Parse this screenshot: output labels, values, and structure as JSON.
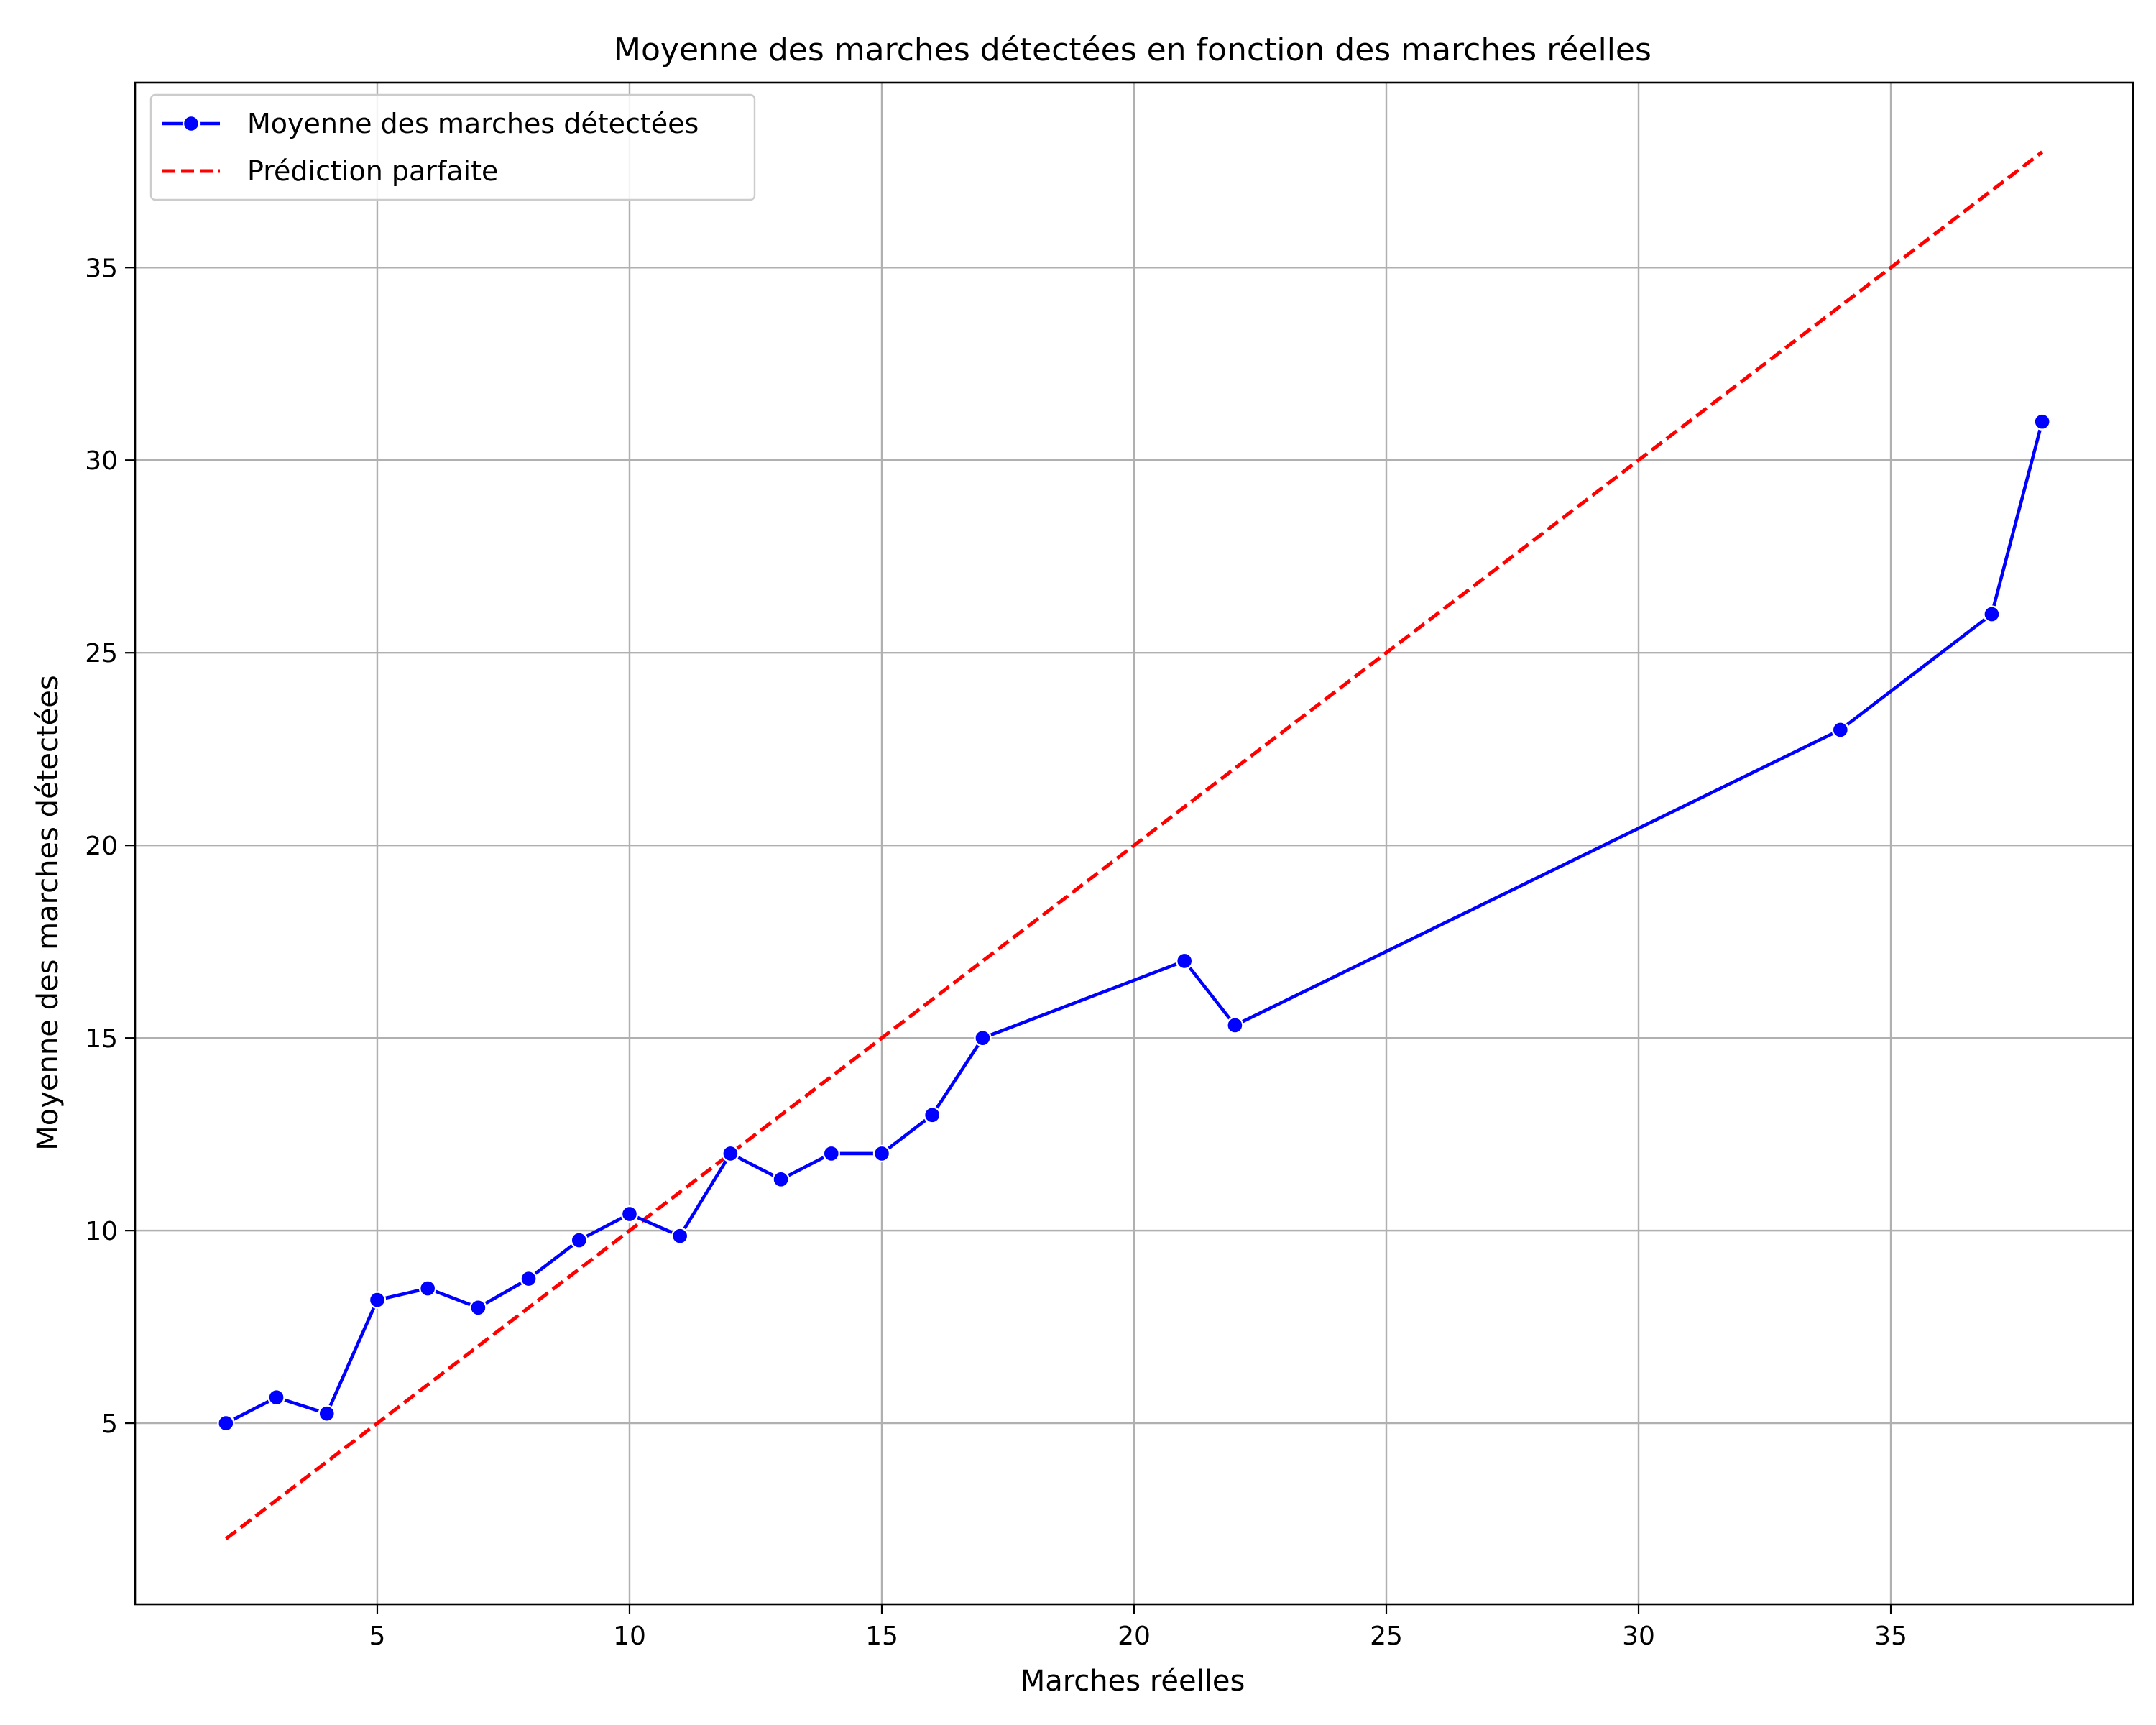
{
  "chart_data": {
    "type": "line",
    "title": "Moyenne des marches détectées en fonction des marches réelles",
    "xlabel": "Marches réelles",
    "ylabel": "Moyenne des marches détectées",
    "xlim": [
      0.2,
      39.8
    ],
    "ylim": [
      0.3,
      39.8
    ],
    "xticks": [
      5,
      10,
      15,
      20,
      25,
      30,
      35
    ],
    "yticks": [
      5,
      10,
      15,
      20,
      25,
      30,
      35
    ],
    "grid": true,
    "legend_position": "top-left",
    "series": [
      {
        "name": "Moyenne des marches détectées",
        "color": "#0000ff",
        "style": "solid",
        "marker": "circle",
        "x": [
          2,
          3,
          4,
          5,
          6,
          7,
          8,
          9,
          10,
          11,
          12,
          13,
          14,
          15,
          16,
          17,
          21,
          22,
          34,
          37,
          38
        ],
        "y": [
          5.0,
          5.67,
          5.25,
          8.2,
          8.5,
          8.0,
          8.75,
          9.75,
          10.43,
          9.86,
          12.0,
          11.33,
          12.0,
          12.0,
          13.0,
          15.0,
          17.0,
          15.33,
          23.0,
          26.0,
          31.0
        ]
      },
      {
        "name": "Prédiction parfaite",
        "color": "#ff0000",
        "style": "dashed",
        "marker": "none",
        "x": [
          2,
          38
        ],
        "y": [
          2,
          38
        ]
      }
    ]
  }
}
